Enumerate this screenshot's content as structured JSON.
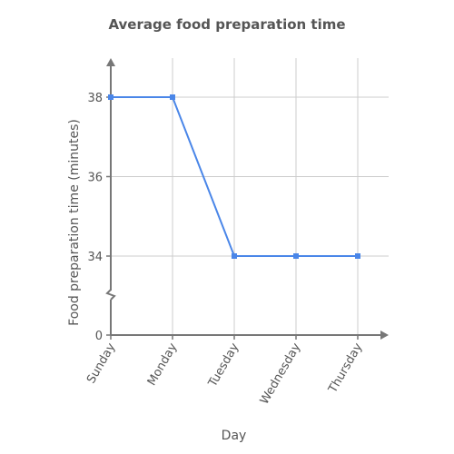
{
  "chart_data": {
    "type": "line",
    "title": "Average food preparation time",
    "xlabel": "Day",
    "ylabel": "Food preparation time (minutes)",
    "categories": [
      "Sunday",
      "Monday",
      "Tuesday",
      "Wednesday",
      "Thursday"
    ],
    "series": [
      {
        "values": [
          38,
          38,
          34,
          34,
          34
        ]
      }
    ],
    "y_ticks": [
      0,
      34,
      36,
      38
    ],
    "ylim_broken": [
      33,
      39
    ],
    "axis_break": true,
    "grid": true,
    "line_color": "#4a86e8",
    "grid_color": "#cccccc",
    "axis_color": "#777777"
  }
}
